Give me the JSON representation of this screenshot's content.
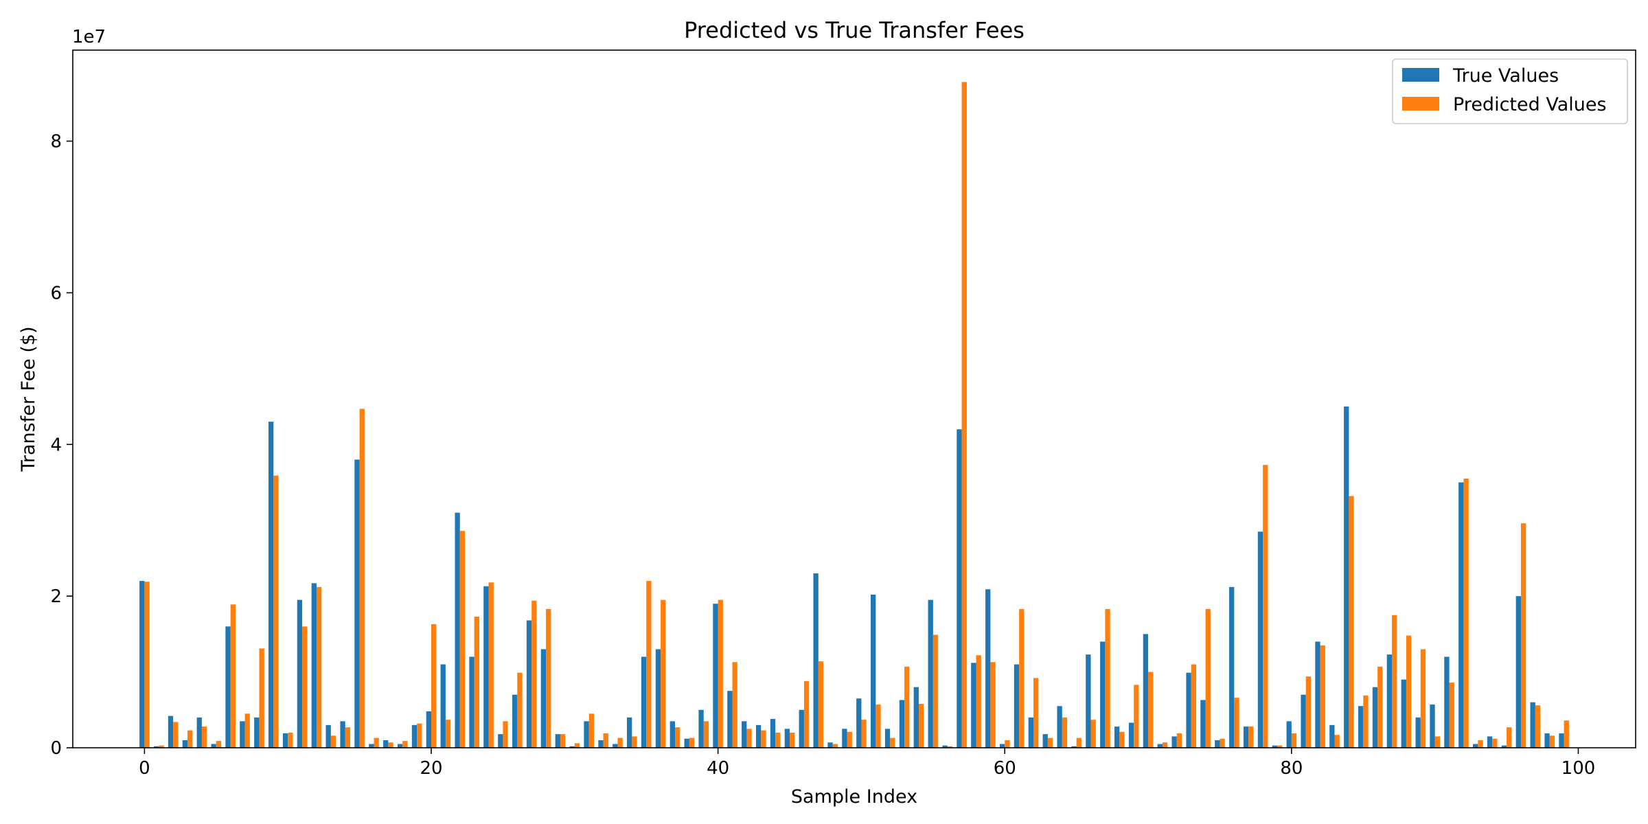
{
  "chart_data": {
    "type": "bar",
    "title": "Predicted vs True Transfer Fees",
    "xlabel": "Sample Index",
    "ylabel": "Transfer Fee ($)",
    "y_offset_text": "1e7",
    "xlim": [
      -5,
      104
    ],
    "ylim": [
      0,
      92000000
    ],
    "x_ticks": [
      0,
      20,
      40,
      60,
      80,
      100
    ],
    "y_ticks": [
      0,
      20000000,
      40000000,
      60000000,
      80000000
    ],
    "y_tick_labels": [
      "0",
      "2",
      "4",
      "6",
      "8"
    ],
    "legend_position": "upper-right",
    "grid": false,
    "series": [
      {
        "name": "True Values",
        "color": "#1f77b4",
        "values": [
          22000000,
          200000,
          4200000,
          1000000,
          4000000,
          500000,
          16000000,
          3500000,
          4000000,
          43000000,
          1900000,
          19500000,
          21700000,
          3000000,
          3500000,
          38000000,
          500000,
          1000000,
          500000,
          3000000,
          4800000,
          11000000,
          31000000,
          12000000,
          21300000,
          1800000,
          7000000,
          16800000,
          13000000,
          1800000,
          200000,
          3500000,
          1000000,
          500000,
          4000000,
          12000000,
          13000000,
          3500000,
          1200000,
          5000000,
          19000000,
          7500000,
          3500000,
          3000000,
          3800000,
          2500000,
          5000000,
          23000000,
          700000,
          2500000,
          6500000,
          20200000,
          2500000,
          6300000,
          8000000,
          19500000,
          300000,
          42000000,
          11200000,
          20900000,
          500000,
          11000000,
          4000000,
          1800000,
          5500000,
          200000,
          12300000,
          14000000,
          2800000,
          3300000,
          15000000,
          500000,
          1500000,
          9900000,
          6300000,
          1000000,
          21200000,
          2800000,
          28500000,
          300000,
          3500000,
          7000000,
          14000000,
          3000000,
          45000000,
          5500000,
          8000000,
          12300000,
          9000000,
          4000000,
          5700000,
          12000000,
          35000000,
          500000,
          1500000,
          300000,
          20000000,
          6000000,
          1900000,
          1900000
        ]
      },
      {
        "name": "Predicted Values",
        "color": "#ff7f0e",
        "values": [
          21900000,
          300000,
          3400000,
          2300000,
          2800000,
          900000,
          18900000,
          4500000,
          13100000,
          35900000,
          2000000,
          16000000,
          21200000,
          1600000,
          2700000,
          44700000,
          1300000,
          700000,
          900000,
          3200000,
          16300000,
          3700000,
          28600000,
          17300000,
          21800000,
          3500000,
          9900000,
          19400000,
          18300000,
          1800000,
          600000,
          4500000,
          1900000,
          1300000,
          1500000,
          22000000,
          19500000,
          2700000,
          1300000,
          3500000,
          19500000,
          11300000,
          2500000,
          2300000,
          2000000,
          2000000,
          8800000,
          11400000,
          500000,
          2100000,
          3700000,
          5700000,
          1300000,
          10700000,
          5800000,
          14900000,
          200000,
          87800000,
          12200000,
          11300000,
          1000000,
          18300000,
          9200000,
          1300000,
          4000000,
          1300000,
          3700000,
          18300000,
          2100000,
          8300000,
          10000000,
          700000,
          1900000,
          11000000,
          18300000,
          1200000,
          6600000,
          2800000,
          37300000,
          300000,
          1900000,
          9400000,
          13500000,
          1700000,
          33200000,
          6900000,
          10700000,
          17500000,
          14800000,
          13000000,
          1500000,
          8600000,
          35500000,
          1000000,
          1200000,
          2700000,
          29600000,
          5600000,
          1600000,
          3600000
        ]
      }
    ]
  }
}
